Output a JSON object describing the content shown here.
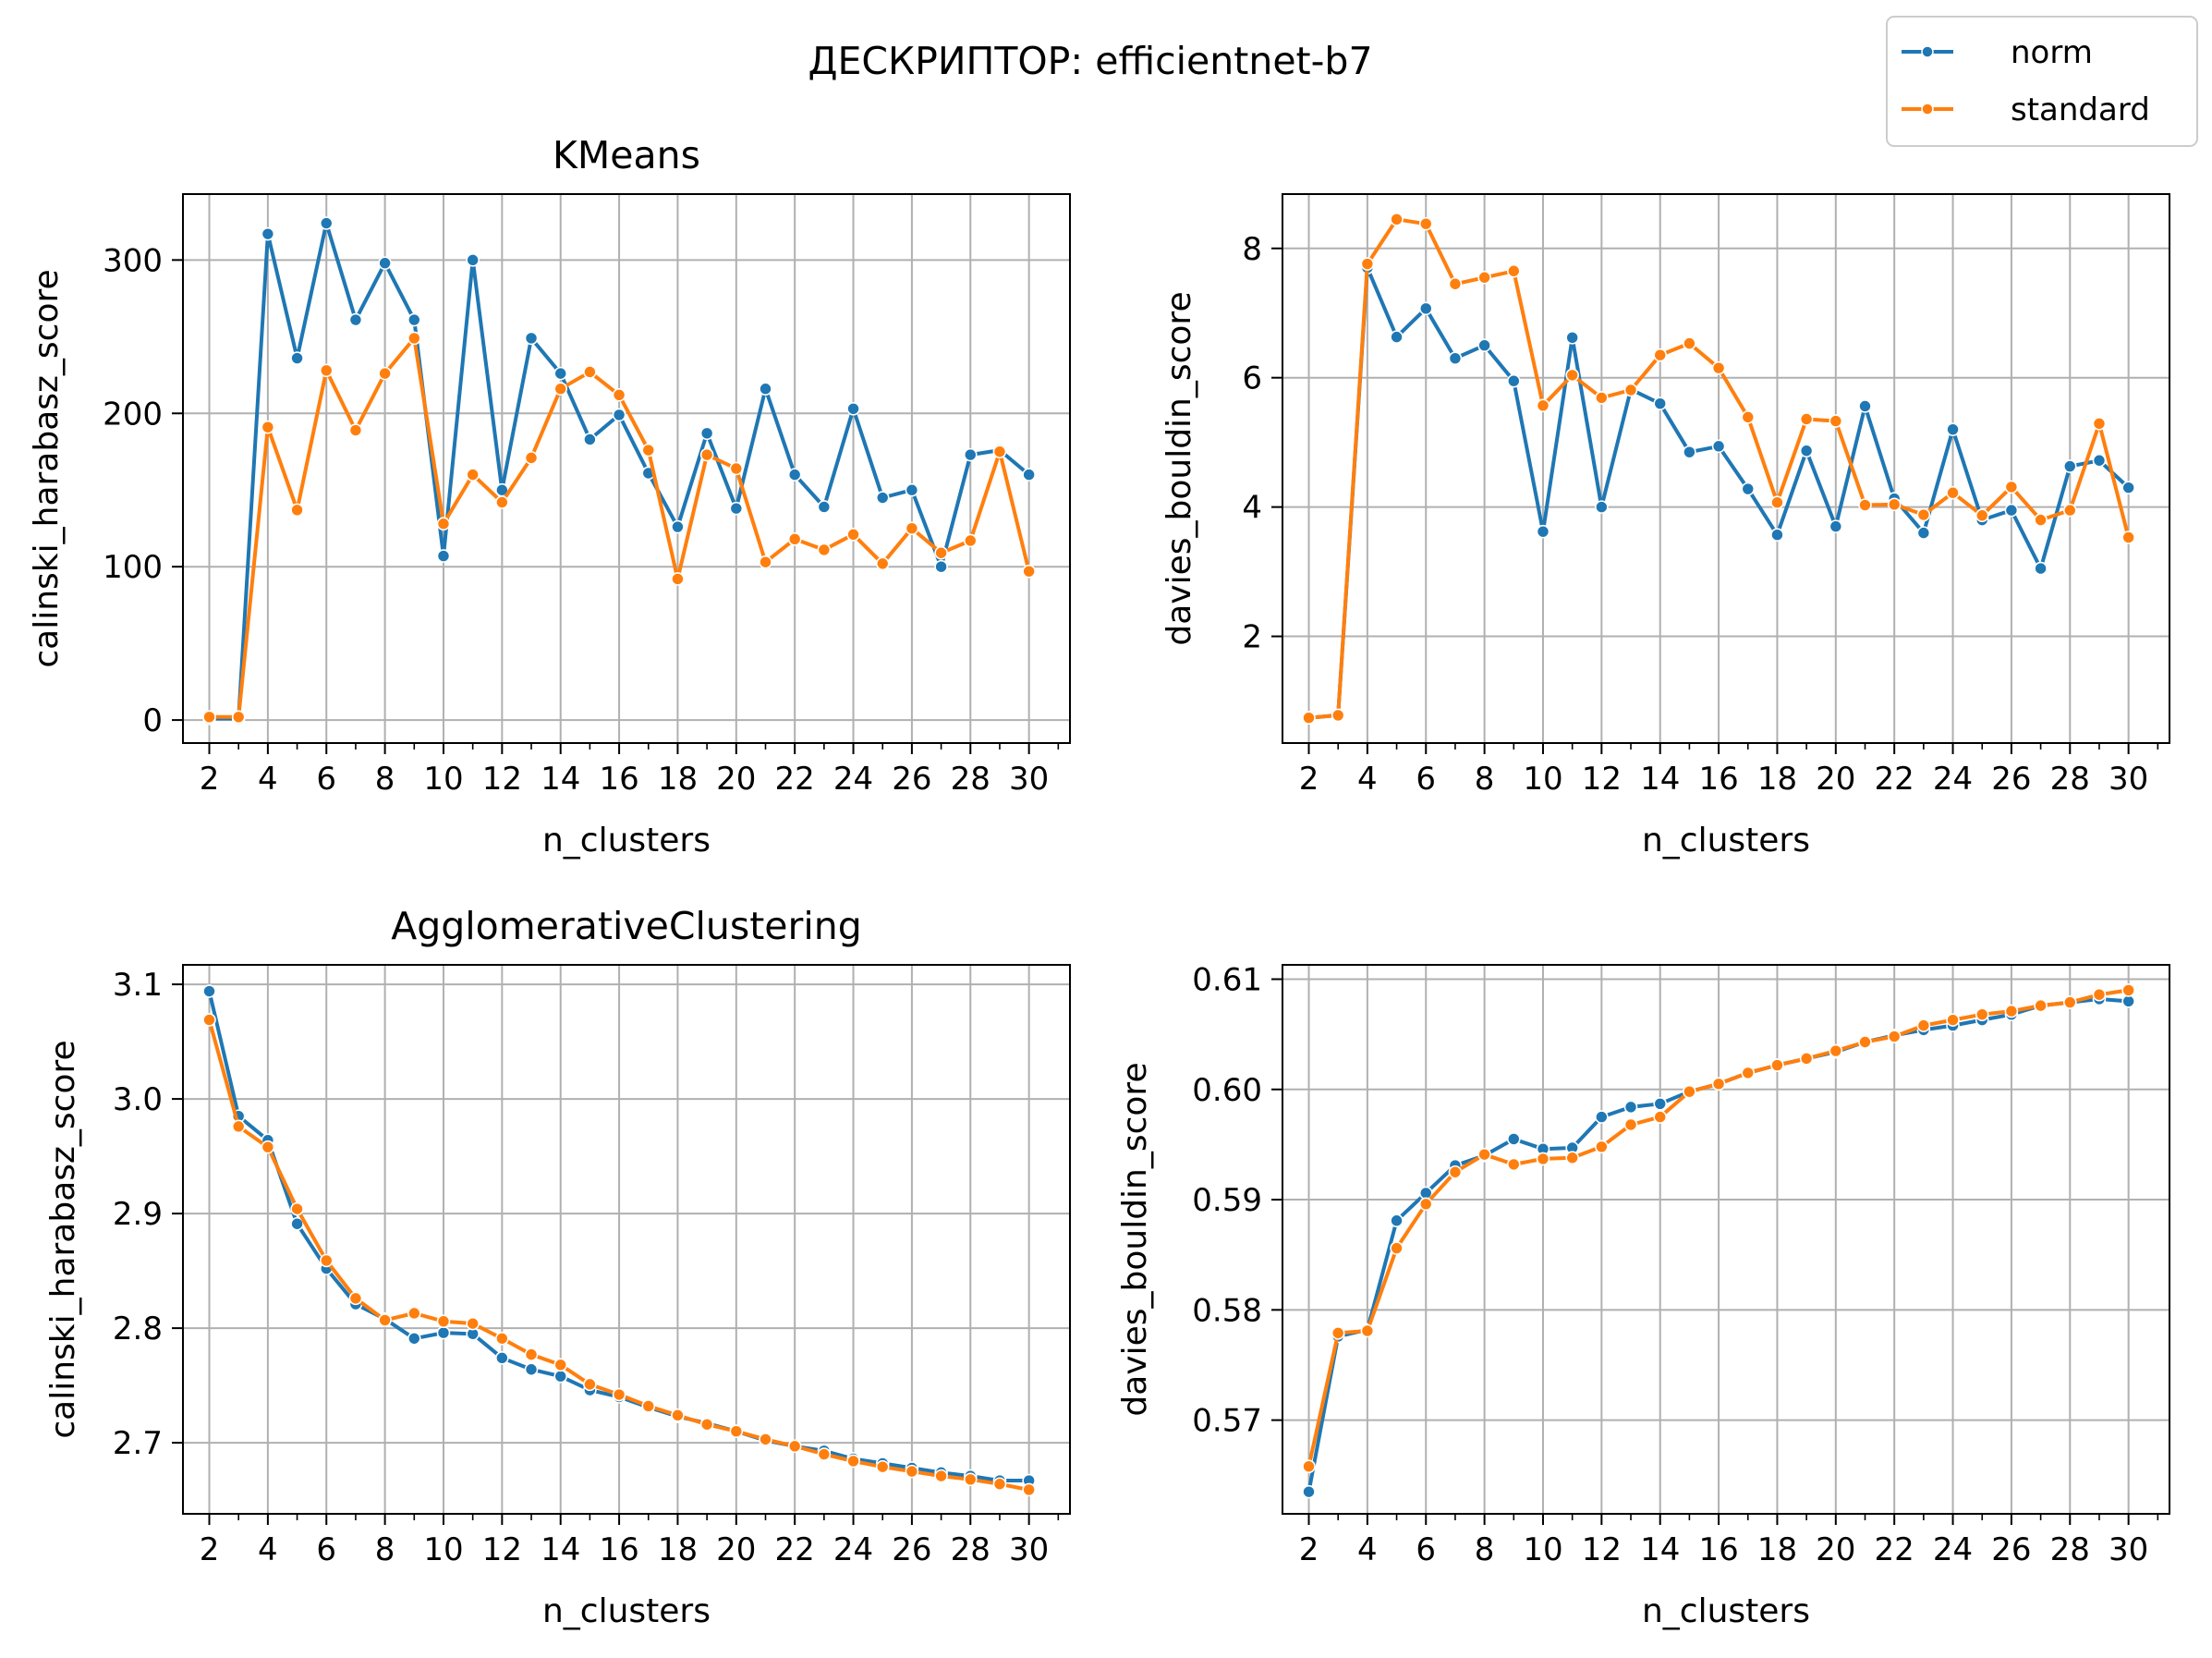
{
  "suptitle": "ДЕСКРИПТОР: efficientnet-b7",
  "legend": {
    "placement": "top-right",
    "entries": [
      {
        "name": "norm",
        "color": "#1f77b4"
      },
      {
        "name": "standard",
        "color": "#ff7f0e"
      }
    ]
  },
  "chart_data": [
    {
      "type": "line",
      "title": "KMeans",
      "xlabel": "n_clusters",
      "ylabel": "calinski_harabasz_score",
      "xlim": [
        1.1,
        31.4
      ],
      "ylim": [
        -15,
        343
      ],
      "xticks": [
        2,
        4,
        6,
        8,
        10,
        12,
        14,
        16,
        18,
        20,
        22,
        24,
        26,
        28,
        30
      ],
      "xtick_labels": [
        "2",
        "4",
        "6",
        "8",
        "10",
        "12",
        "14",
        "16",
        "18",
        "20",
        "22",
        "24",
        "26",
        "28",
        "30"
      ],
      "yticks": [
        0,
        100,
        200,
        300
      ],
      "ytick_labels": [
        "0",
        "100",
        "200",
        "300"
      ],
      "grid": true,
      "x": [
        2,
        3,
        4,
        5,
        6,
        7,
        8,
        9,
        10,
        11,
        12,
        13,
        14,
        15,
        16,
        17,
        18,
        19,
        20,
        21,
        22,
        23,
        24,
        25,
        26,
        27,
        28,
        29,
        30
      ],
      "series": [
        {
          "name": "norm",
          "color": "#1f77b4",
          "values": [
            1,
            1,
            317,
            236,
            324,
            261,
            298,
            261,
            107,
            300,
            150,
            249,
            226,
            183,
            199,
            161,
            126,
            187,
            138,
            216,
            160,
            139,
            203,
            145,
            150,
            100,
            173,
            176,
            160
          ]
        },
        {
          "name": "standard",
          "color": "#ff7f0e",
          "values": [
            2,
            2,
            191,
            137,
            228,
            189,
            226,
            249,
            128,
            160,
            142,
            171,
            216,
            227,
            212,
            176,
            92,
            173,
            164,
            103,
            118,
            111,
            121,
            102,
            125,
            109,
            117,
            175,
            97
          ]
        }
      ]
    },
    {
      "type": "line",
      "title": "",
      "xlabel": "n_clusters",
      "ylabel": "davies_bouldin_score",
      "xlim": [
        1.1,
        31.4
      ],
      "ylim": [
        0.35,
        8.84
      ],
      "xticks": [
        2,
        4,
        6,
        8,
        10,
        12,
        14,
        16,
        18,
        20,
        22,
        24,
        26,
        28,
        30
      ],
      "xtick_labels": [
        "2",
        "4",
        "6",
        "8",
        "10",
        "12",
        "14",
        "16",
        "18",
        "20",
        "22",
        "24",
        "26",
        "28",
        "30"
      ],
      "yticks": [
        2,
        4,
        6,
        8
      ],
      "ytick_labels": [
        "2",
        "4",
        "6",
        "8"
      ],
      "grid": true,
      "x": [
        2,
        3,
        4,
        5,
        6,
        7,
        8,
        9,
        10,
        11,
        12,
        13,
        14,
        15,
        16,
        17,
        18,
        19,
        20,
        21,
        22,
        23,
        24,
        25,
        26,
        27,
        28,
        29,
        30
      ],
      "series": [
        {
          "name": "norm",
          "color": "#1f77b4",
          "values": [
            0.74,
            0.78,
            7.7,
            6.63,
            7.07,
            6.3,
            6.5,
            5.95,
            3.62,
            6.62,
            4.0,
            5.82,
            5.6,
            4.85,
            4.94,
            4.28,
            3.57,
            4.87,
            3.7,
            5.56,
            4.13,
            3.6,
            5.2,
            3.8,
            3.95,
            3.05,
            4.63,
            4.72,
            4.3
          ]
        },
        {
          "name": "standard",
          "color": "#ff7f0e",
          "values": [
            0.74,
            0.78,
            7.76,
            8.45,
            8.38,
            7.45,
            7.55,
            7.65,
            5.57,
            6.04,
            5.69,
            5.81,
            6.35,
            6.53,
            6.15,
            5.39,
            4.07,
            5.36,
            5.33,
            4.03,
            4.04,
            3.88,
            4.22,
            3.87,
            4.31,
            3.8,
            3.95,
            5.29,
            3.53
          ]
        }
      ]
    },
    {
      "type": "line",
      "title": "AgglomerativeClustering",
      "xlabel": "n_clusters",
      "ylabel": "calinski_harabasz_score",
      "xlim": [
        1.1,
        31.4
      ],
      "ylim": [
        2.638,
        3.117
      ],
      "xticks": [
        2,
        4,
        6,
        8,
        10,
        12,
        14,
        16,
        18,
        20,
        22,
        24,
        26,
        28,
        30
      ],
      "xtick_labels": [
        "2",
        "4",
        "6",
        "8",
        "10",
        "12",
        "14",
        "16",
        "18",
        "20",
        "22",
        "24",
        "26",
        "28",
        "30"
      ],
      "yticks": [
        2.7,
        2.8,
        2.9,
        3.0,
        3.1
      ],
      "ytick_labels": [
        "2.7",
        "2.8",
        "2.9",
        "3.0",
        "3.1"
      ],
      "grid": true,
      "x": [
        2,
        3,
        4,
        5,
        6,
        7,
        8,
        9,
        10,
        11,
        12,
        13,
        14,
        15,
        16,
        17,
        18,
        19,
        20,
        21,
        22,
        23,
        24,
        25,
        26,
        27,
        28,
        29,
        30
      ],
      "series": [
        {
          "name": "norm",
          "color": "#1f77b4",
          "values": [
            3.094,
            2.985,
            2.964,
            2.891,
            2.852,
            2.821,
            2.808,
            2.791,
            2.796,
            2.795,
            2.774,
            2.764,
            2.758,
            2.746,
            2.74,
            2.731,
            2.723,
            2.717,
            2.71,
            2.702,
            2.697,
            2.693,
            2.686,
            2.682,
            2.678,
            2.674,
            2.671,
            2.667,
            2.667
          ]
        },
        {
          "name": "standard",
          "color": "#ff7f0e",
          "values": [
            3.069,
            2.976,
            2.958,
            2.904,
            2.859,
            2.826,
            2.807,
            2.813,
            2.806,
            2.804,
            2.791,
            2.777,
            2.768,
            2.751,
            2.742,
            2.732,
            2.724,
            2.716,
            2.71,
            2.703,
            2.697,
            2.69,
            2.684,
            2.679,
            2.675,
            2.671,
            2.668,
            2.664,
            2.659
          ]
        }
      ]
    },
    {
      "type": "line",
      "title": "",
      "xlabel": "n_clusters",
      "ylabel": "davies_bouldin_score",
      "xlim": [
        1.1,
        31.4
      ],
      "ylim": [
        0.5615,
        0.6113
      ],
      "xticks": [
        2,
        4,
        6,
        8,
        10,
        12,
        14,
        16,
        18,
        20,
        22,
        24,
        26,
        28,
        30
      ],
      "xtick_labels": [
        "2",
        "4",
        "6",
        "8",
        "10",
        "12",
        "14",
        "16",
        "18",
        "20",
        "22",
        "24",
        "26",
        "28",
        "30"
      ],
      "yticks": [
        0.57,
        0.58,
        0.59,
        0.6,
        0.61
      ],
      "ytick_labels": [
        "0.57",
        "0.58",
        "0.59",
        "0.60",
        "0.61"
      ],
      "grid": true,
      "x": [
        2,
        3,
        4,
        5,
        6,
        7,
        8,
        9,
        10,
        11,
        12,
        13,
        14,
        15,
        16,
        17,
        18,
        19,
        20,
        21,
        22,
        23,
        24,
        25,
        26,
        27,
        28,
        29,
        30
      ],
      "series": [
        {
          "name": "norm",
          "color": "#1f77b4",
          "values": [
            0.5635,
            0.5776,
            0.5782,
            0.5881,
            0.5906,
            0.5931,
            0.594,
            0.5955,
            0.5946,
            0.5947,
            0.5975,
            0.5984,
            0.5987,
            0.5998,
            0.6005,
            0.6015,
            0.6022,
            0.6028,
            0.6034,
            0.6043,
            0.6049,
            0.6054,
            0.6058,
            0.6063,
            0.6068,
            0.6076,
            0.6079,
            0.6082,
            0.608
          ]
        },
        {
          "name": "standard",
          "color": "#ff7f0e",
          "values": [
            0.5658,
            0.5779,
            0.5781,
            0.5856,
            0.5896,
            0.5925,
            0.5941,
            0.5932,
            0.5937,
            0.5938,
            0.5948,
            0.5968,
            0.5975,
            0.5998,
            0.6005,
            0.6015,
            0.6022,
            0.6028,
            0.6035,
            0.6043,
            0.6048,
            0.6058,
            0.6063,
            0.6068,
            0.6071,
            0.6076,
            0.6079,
            0.6086,
            0.609
          ]
        }
      ]
    }
  ]
}
